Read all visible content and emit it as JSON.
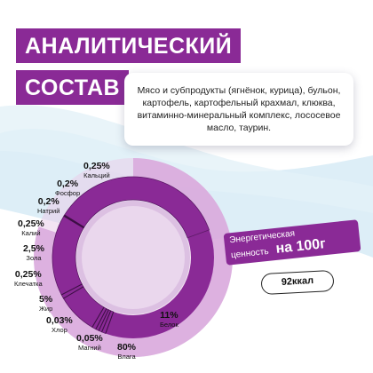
{
  "header": {
    "title_line1": "АНАЛИТИЧЕСКИЙ",
    "title_line2": "СОСТАВ"
  },
  "ingredients_text": "Мясо и субпродукты (ягнёнок, курица), бульон, картофель, картофельный крахмал, клюква, витаминно-минеральный комплекс, лососевое масло, таурин.",
  "energy": {
    "label_line1": "Энергетическая",
    "label_line2": "ценность",
    "per": "на 100г",
    "value": "92ккал"
  },
  "colors": {
    "accent": "#8a2a96",
    "ring_light": "#d8a8dc",
    "ring_pale": "#e9cdea",
    "wave": "#cfe7f3"
  },
  "chart_data": {
    "type": "pie",
    "slices": [
      {
        "name": "Кальций",
        "value": 0.25,
        "label": "0,25%"
      },
      {
        "name": "Фосфор",
        "value": 0.2,
        "label": "0,2%"
      },
      {
        "name": "Натрий",
        "value": 0.2,
        "label": "0,2%"
      },
      {
        "name": "Калий",
        "value": 0.25,
        "label": "0,25%"
      },
      {
        "name": "Зола",
        "value": 2.5,
        "label": "2,5%"
      },
      {
        "name": "Клечатка",
        "value": 0.25,
        "label": "0,25%"
      },
      {
        "name": "Жир",
        "value": 5,
        "label": "5%"
      },
      {
        "name": "Хлор",
        "value": 0.03,
        "label": "0,03%"
      },
      {
        "name": "Магний",
        "value": 0.05,
        "label": "0,05%"
      },
      {
        "name": "Белок",
        "value": 11,
        "label": "11%"
      },
      {
        "name": "Влага",
        "value": 80,
        "label": "80%"
      }
    ]
  }
}
